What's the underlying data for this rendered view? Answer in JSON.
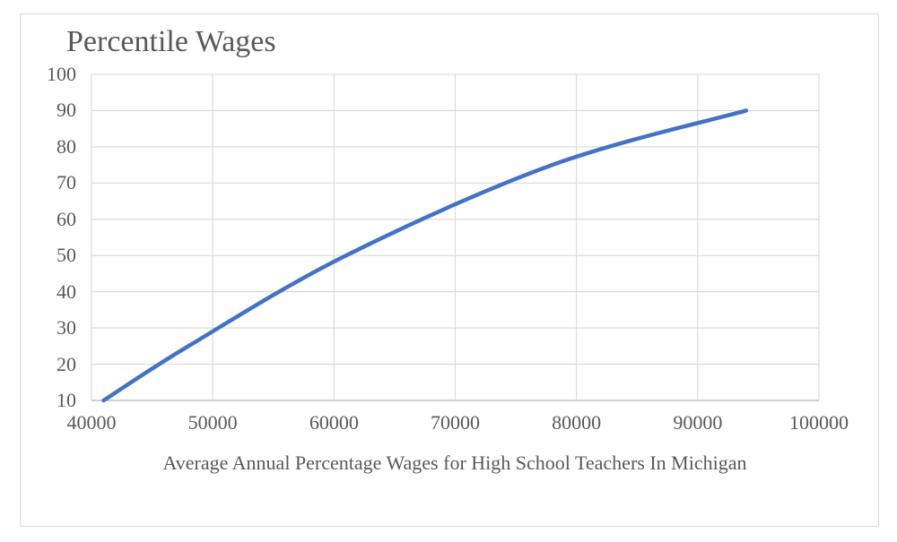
{
  "chart_data": {
    "type": "line",
    "title": "Percentile Wages",
    "xlabel": "Average Annual Percentage Wages for High School Teachers In Michigan",
    "ylabel": "",
    "points": [
      {
        "wage": 41000,
        "percentile": 10
      },
      {
        "wage": 48000,
        "percentile": 25
      },
      {
        "wage": 61000,
        "percentile": 50
      },
      {
        "wage": 78000,
        "percentile": 75
      },
      {
        "wage": 94000,
        "percentile": 90
      }
    ],
    "xlim": [
      40000,
      100000
    ],
    "ylim": [
      10,
      100
    ],
    "x_ticks": [
      40000,
      50000,
      60000,
      70000,
      80000,
      90000,
      100000
    ],
    "y_ticks": [
      100,
      90,
      80,
      70,
      60,
      50,
      40,
      30,
      20,
      10
    ],
    "grid": true,
    "legend": "none",
    "line_style": "smooth",
    "colors": {
      "line": "#4472C4",
      "grid": "#D9D9D9",
      "axis_line": "#BFBFBF",
      "text": "#595959",
      "frame_border": "#D9D9D9",
      "background": "#FFFFFF"
    }
  }
}
